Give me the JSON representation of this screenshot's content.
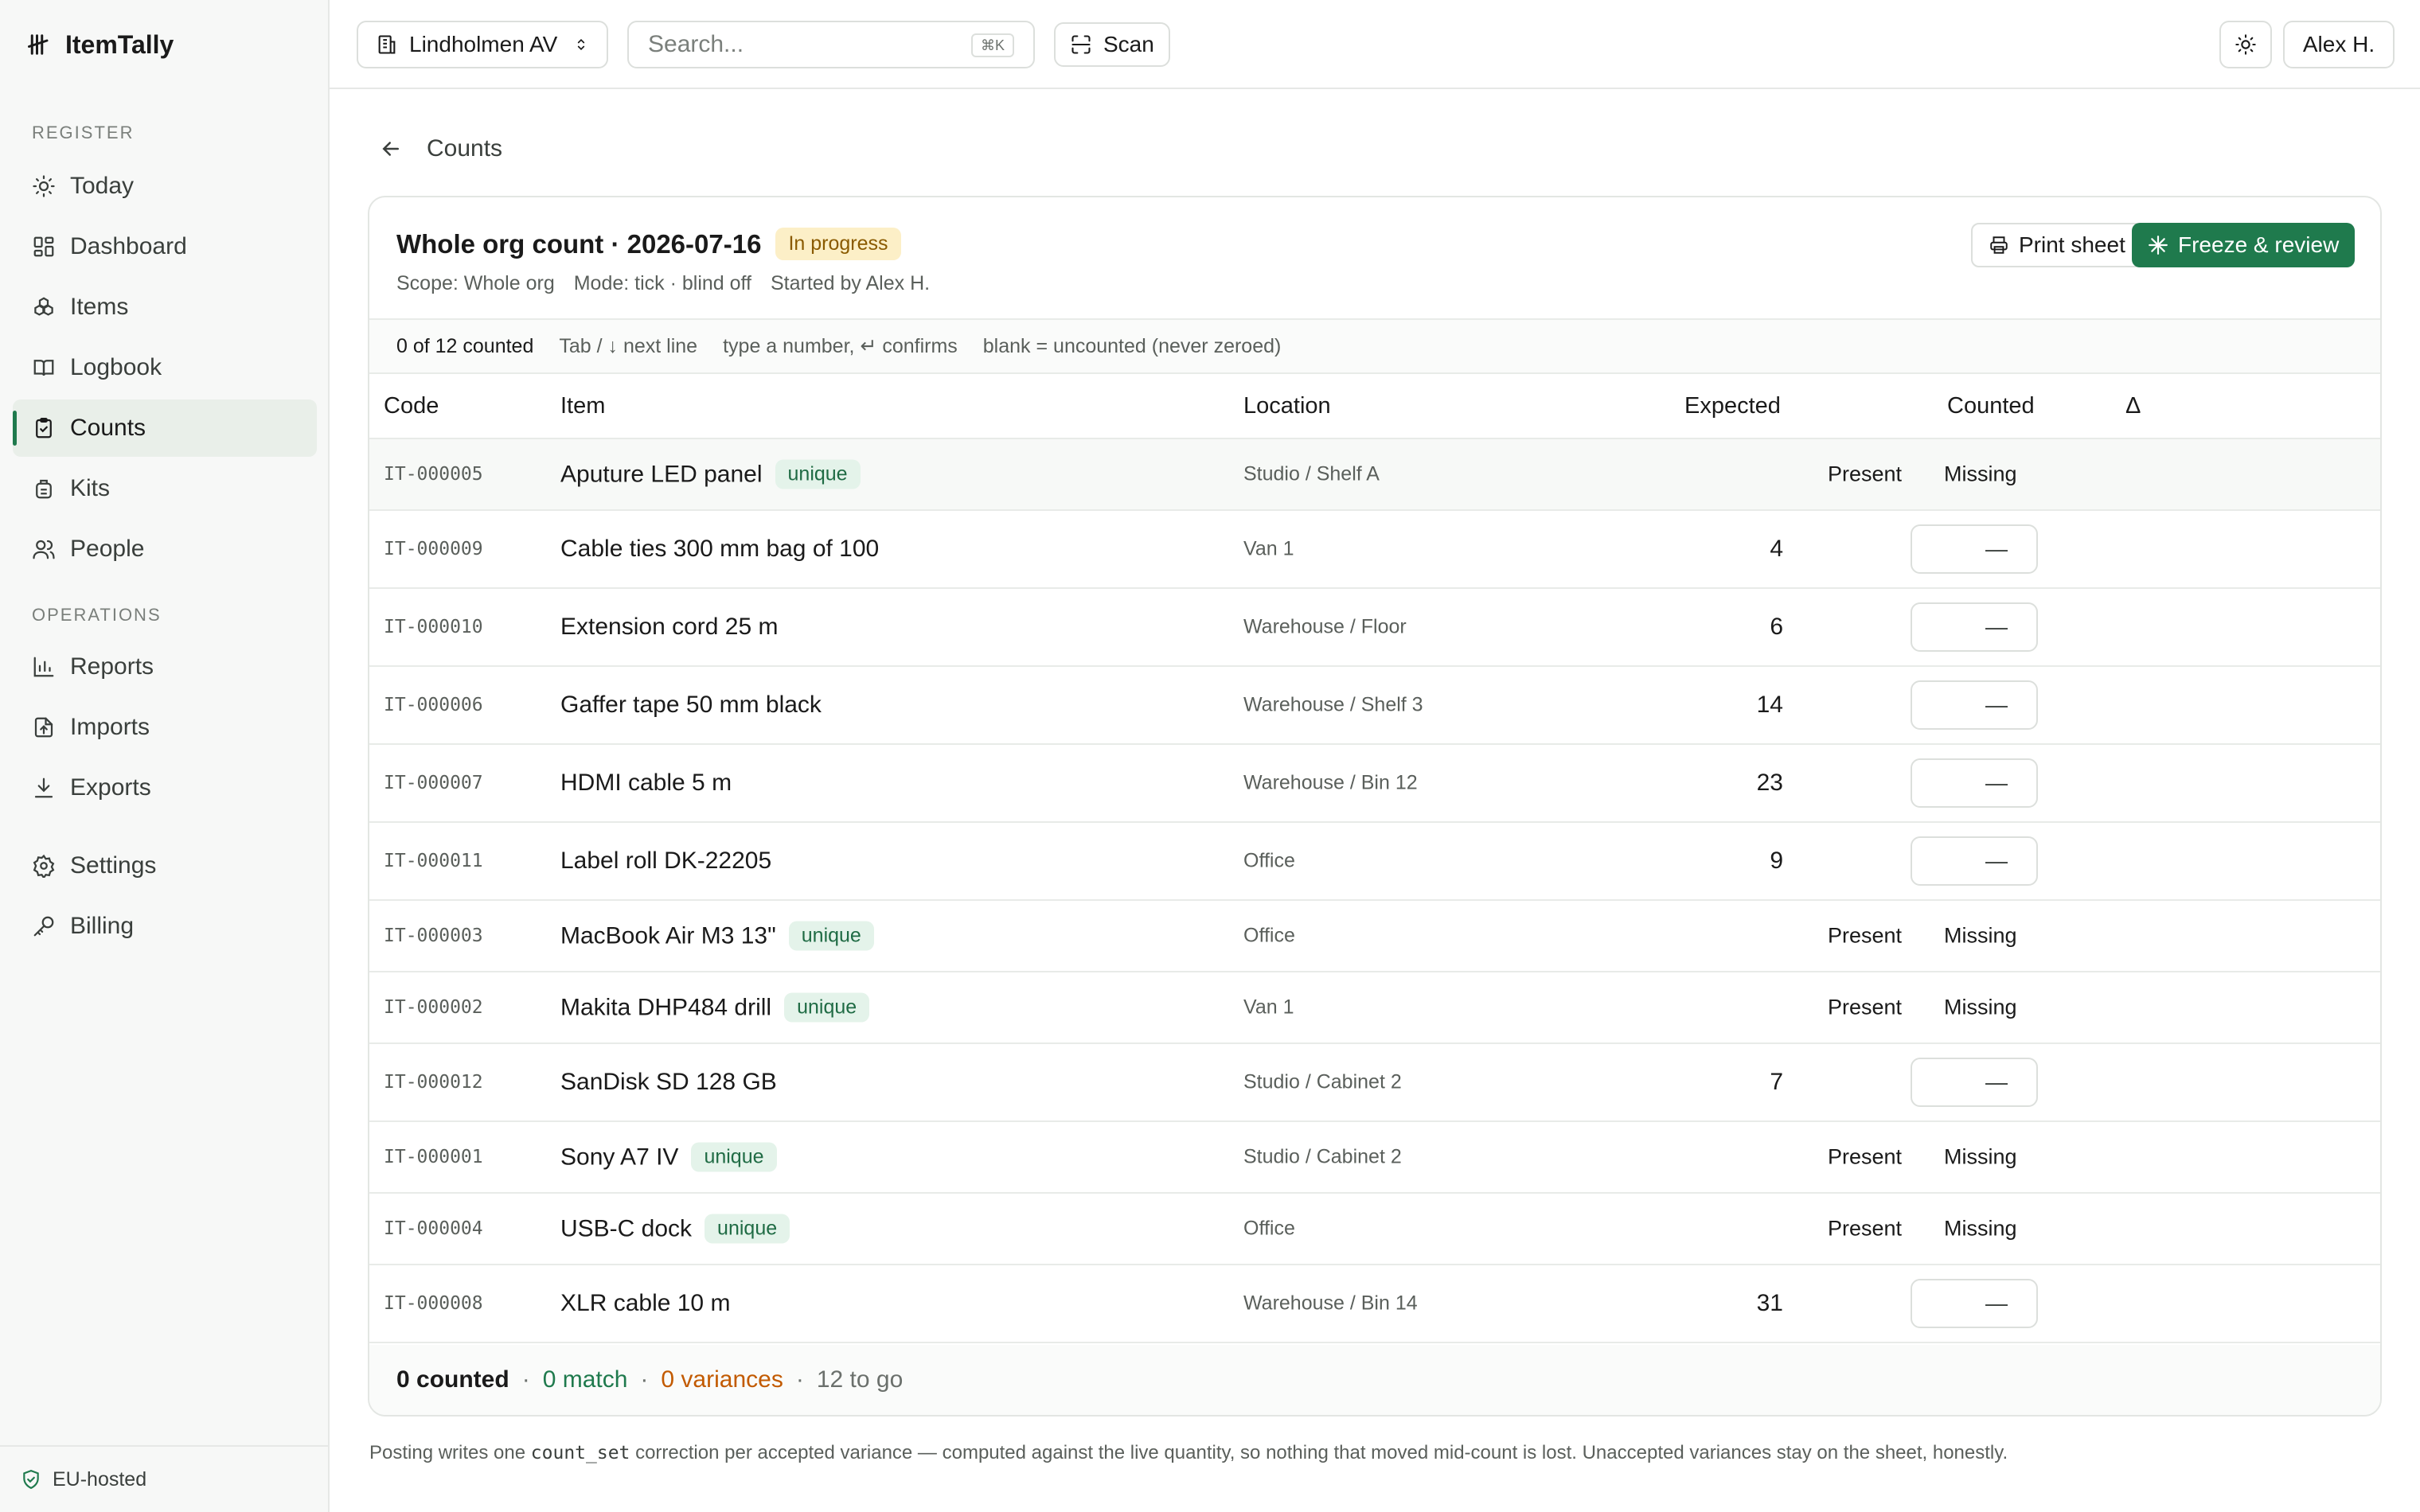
{
  "app": {
    "name": "ItemTally"
  },
  "sidebar": {
    "register_label": "REGISTER",
    "operations_label": "OPERATIONS",
    "items": [
      {
        "label": "Today",
        "icon": "sun-icon"
      },
      {
        "label": "Dashboard",
        "icon": "dashboard-icon"
      },
      {
        "label": "Items",
        "icon": "items-icon"
      },
      {
        "label": "Logbook",
        "icon": "book-icon"
      },
      {
        "label": "Counts",
        "icon": "clipboard-icon",
        "active": true
      },
      {
        "label": "Kits",
        "icon": "kit-icon"
      },
      {
        "label": "People",
        "icon": "people-icon"
      },
      {
        "label": "Reports",
        "icon": "chart-icon"
      },
      {
        "label": "Imports",
        "icon": "upload-icon"
      },
      {
        "label": "Exports",
        "icon": "download-icon"
      },
      {
        "label": "Settings",
        "icon": "gear-icon"
      },
      {
        "label": "Billing",
        "icon": "key-icon"
      }
    ],
    "footer": "EU-hosted"
  },
  "topbar": {
    "org": "Lindholmen AV",
    "search_placeholder": "Search...",
    "search_shortcut": "⌘K",
    "scan_label": "Scan",
    "user": "Alex H."
  },
  "breadcrumb": {
    "label": "Counts"
  },
  "count": {
    "title": "Whole org count · 2026-07-16",
    "status": "In progress",
    "meta": [
      "Scope: Whole org",
      "Mode: tick · blind off",
      "Started by Alex H."
    ],
    "print_label": "Print sheet",
    "freeze_label": "Freeze & review",
    "hints": [
      "0 of 12 counted",
      "Tab / ↓ next line",
      "type a number, ↵ confirms",
      "blank = uncounted (never zeroed)"
    ],
    "columns": {
      "code": "Code",
      "item": "Item",
      "location": "Location",
      "expected": "Expected",
      "counted": "Counted",
      "delta": "Δ"
    },
    "present_label": "Present",
    "missing_label": "Missing",
    "unique_label": "unique",
    "blank_value": "—",
    "rows": [
      {
        "code": "IT-000005",
        "item": "Aputure LED panel",
        "unique": true,
        "location": "Studio / Shelf A",
        "expected": ""
      },
      {
        "code": "IT-000009",
        "item": "Cable ties 300 mm bag of 100",
        "unique": false,
        "location": "Van 1",
        "expected": "4"
      },
      {
        "code": "IT-000010",
        "item": "Extension cord 25 m",
        "unique": false,
        "location": "Warehouse / Floor",
        "expected": "6"
      },
      {
        "code": "IT-000006",
        "item": "Gaffer tape 50 mm black",
        "unique": false,
        "location": "Warehouse / Shelf 3",
        "expected": "14"
      },
      {
        "code": "IT-000007",
        "item": "HDMI cable 5 m",
        "unique": false,
        "location": "Warehouse / Bin 12",
        "expected": "23"
      },
      {
        "code": "IT-000011",
        "item": "Label roll DK-22205",
        "unique": false,
        "location": "Office",
        "expected": "9"
      },
      {
        "code": "IT-000003",
        "item": "MacBook Air M3 13\"",
        "unique": true,
        "location": "Office",
        "expected": ""
      },
      {
        "code": "IT-000002",
        "item": "Makita DHP484 drill",
        "unique": true,
        "location": "Van 1",
        "expected": ""
      },
      {
        "code": "IT-000012",
        "item": "SanDisk SD 128 GB",
        "unique": false,
        "location": "Studio / Cabinet 2",
        "expected": "7"
      },
      {
        "code": "IT-000001",
        "item": "Sony A7 IV",
        "unique": true,
        "location": "Studio / Cabinet 2",
        "expected": ""
      },
      {
        "code": "IT-000004",
        "item": "USB-C dock",
        "unique": true,
        "location": "Office",
        "expected": ""
      },
      {
        "code": "IT-000008",
        "item": "XLR cable 10 m",
        "unique": false,
        "location": "Warehouse / Bin 14",
        "expected": "31"
      }
    ],
    "footer": {
      "counted": "0 counted",
      "match": "0 match",
      "variances": "0 variances",
      "to_go": "12 to go",
      "sep": "·"
    }
  },
  "note": {
    "before": "Posting writes one ",
    "code": "count_set",
    "after": " correction per accepted variance — computed against the live quantity, so nothing that moved mid-count is lost. Unaccepted variances stay on the sheet, honestly."
  },
  "colors": {
    "accent": "#1f7a4d",
    "warning_bg": "#fcefc7",
    "variance": "#c25a00"
  }
}
